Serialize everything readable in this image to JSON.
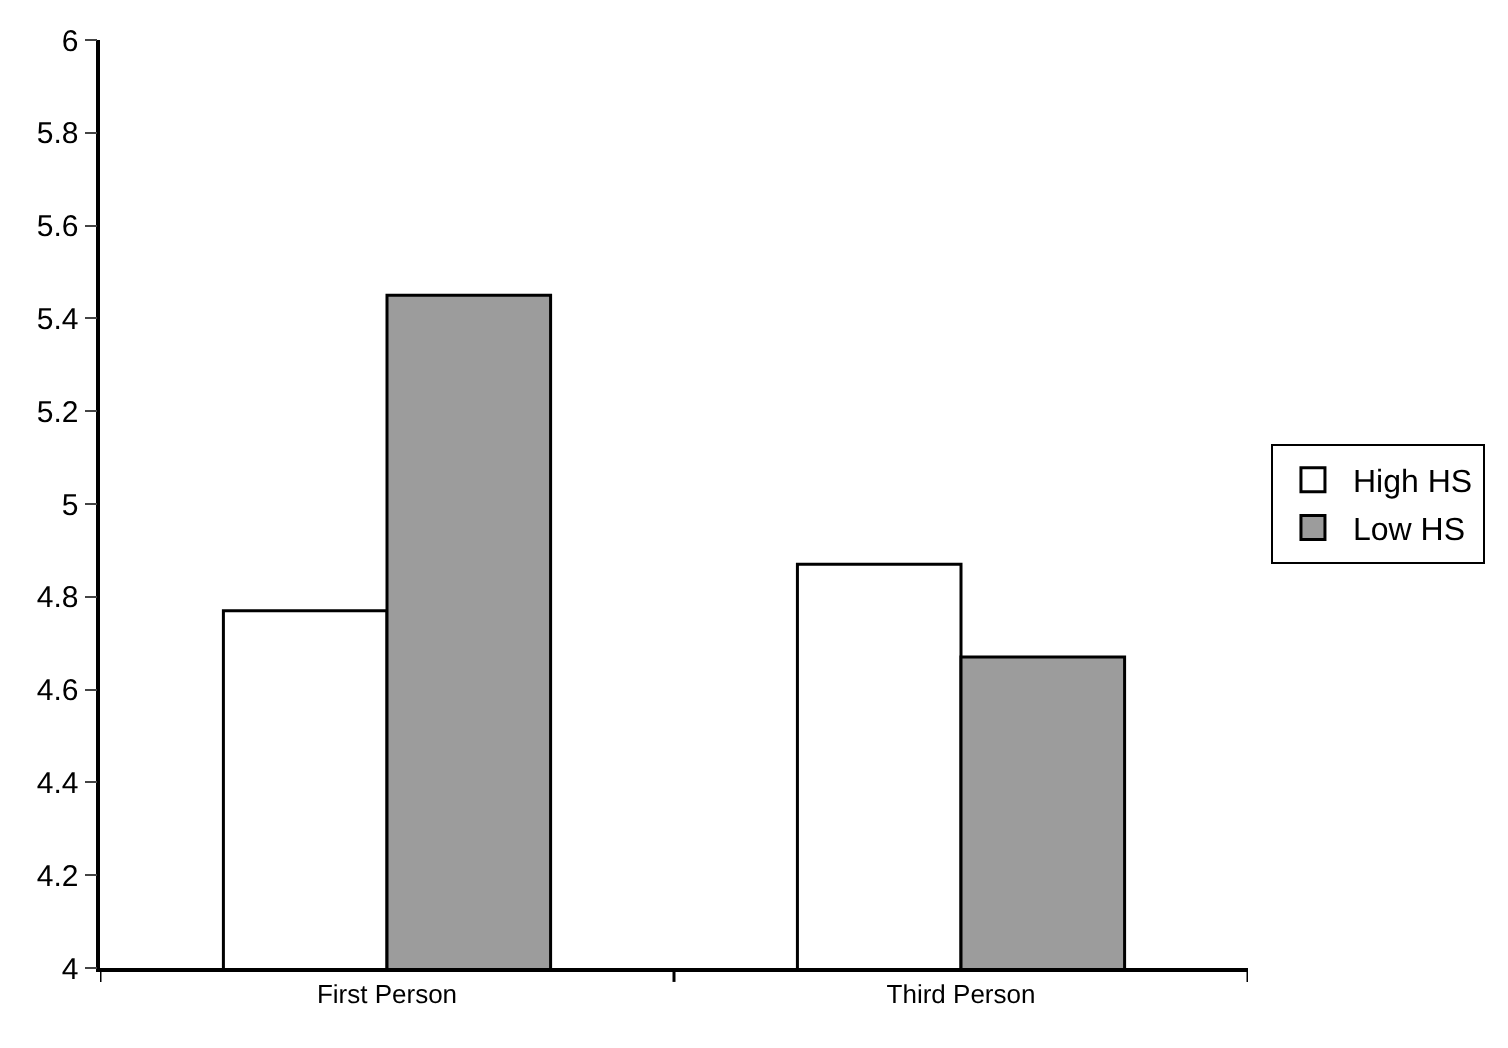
{
  "chart_data": {
    "type": "bar",
    "categories": [
      "First Person",
      "Third Person"
    ],
    "series": [
      {
        "name": "High HS",
        "color": "#ffffff",
        "values": [
          4.77,
          4.87
        ]
      },
      {
        "name": "Low HS",
        "color": "#9c9c9c",
        "values": [
          5.45,
          4.67
        ]
      }
    ],
    "ylim": [
      4,
      6
    ],
    "yticks": [
      4,
      4.2,
      4.4,
      4.6,
      4.8,
      5,
      5.2,
      5.4,
      5.6,
      5.8,
      6
    ],
    "legend": "right"
  }
}
